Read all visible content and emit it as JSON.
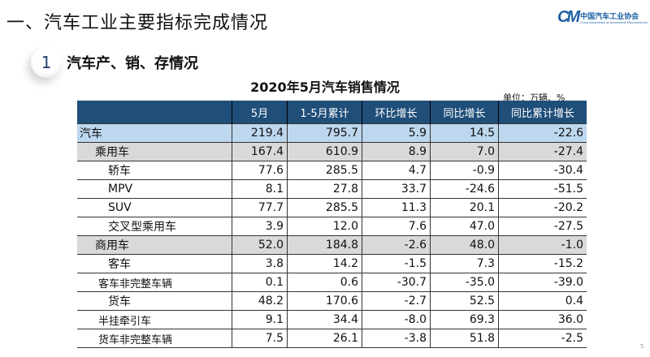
{
  "header": {
    "title": "一、汽车工业主要指标完成情况",
    "logo_cn": "中国汽车工业协会",
    "logo_en": "China Association of Automobile Manufacturers",
    "logo_mark": "CM"
  },
  "section": {
    "number": "1",
    "title": "汽车产、销、存情况"
  },
  "table": {
    "title": "2020年5月汽车销售情况",
    "unit": "单位：万辆、%",
    "columns": [
      "",
      "5月",
      "1-5月累计",
      "环比增长",
      "同比增长",
      "同比累计增长"
    ],
    "rows": [
      {
        "label": "汽车",
        "level": 0,
        "values": [
          "219.4",
          "795.7",
          "5.9",
          "14.5",
          "-22.6"
        ]
      },
      {
        "label": "乘用车",
        "level": 1,
        "values": [
          "167.4",
          "610.9",
          "8.9",
          "7.0",
          "-27.4"
        ]
      },
      {
        "label": "轿车",
        "level": 2,
        "values": [
          "77.6",
          "285.5",
          "4.7",
          "-0.9",
          "-30.4"
        ]
      },
      {
        "label": "MPV",
        "level": 2,
        "values": [
          "8.1",
          "27.8",
          "33.7",
          "-24.6",
          "-51.5"
        ]
      },
      {
        "label": "SUV",
        "level": 2,
        "values": [
          "77.7",
          "285.5",
          "11.3",
          "20.1",
          "-20.2"
        ]
      },
      {
        "label": "交叉型乘用车",
        "level": 2,
        "values": [
          "3.9",
          "12.0",
          "7.6",
          "47.0",
          "-27.5"
        ]
      },
      {
        "label": "商用车",
        "level": 1,
        "values": [
          "52.0",
          "184.8",
          "-2.6",
          "48.0",
          "-1.0"
        ]
      },
      {
        "label": "客车",
        "level": 2,
        "values": [
          "3.8",
          "14.2",
          "-1.5",
          "7.3",
          "-15.2"
        ]
      },
      {
        "label": "客车非完整车辆",
        "level": 3,
        "values": [
          "0.1",
          "0.6",
          "-30.7",
          "-35.0",
          "-39.0"
        ]
      },
      {
        "label": "货车",
        "level": 2,
        "values": [
          "48.2",
          "170.6",
          "-2.7",
          "52.5",
          "0.4"
        ]
      },
      {
        "label": "半挂牵引车",
        "level": 3,
        "values": [
          "9.1",
          "34.4",
          "-8.0",
          "69.3",
          "36.0"
        ]
      },
      {
        "label": "货车非完整车辆",
        "level": 3,
        "values": [
          "7.5",
          "26.1",
          "-3.8",
          "51.8",
          "-2.5"
        ]
      }
    ]
  },
  "footer": {
    "page": "5"
  },
  "colors": {
    "header_bg": "#1f4e79",
    "total_row": "#bdd7ee",
    "subtotal_row": "#d9d9d9",
    "logo": "#1d5fa3"
  }
}
